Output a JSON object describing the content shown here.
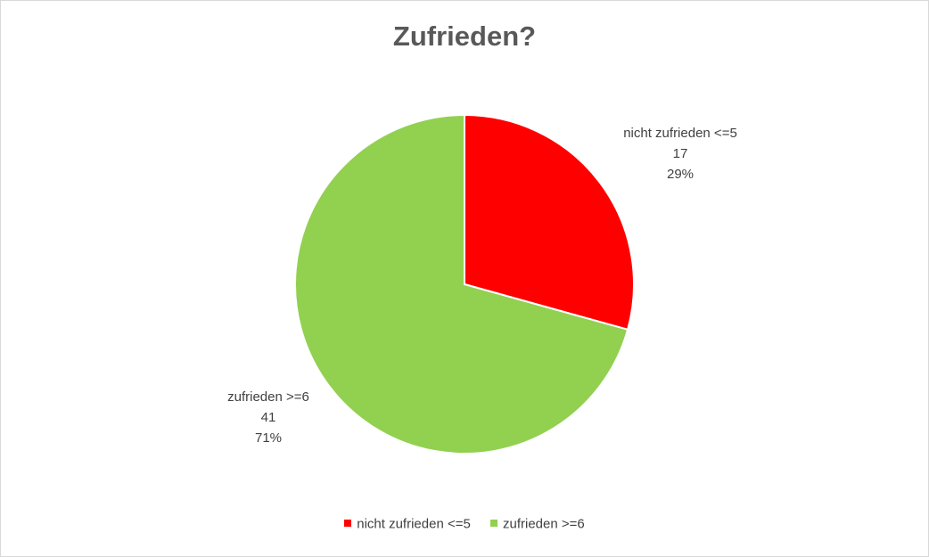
{
  "chart_data": {
    "type": "pie",
    "title": "Zufrieden?",
    "categories": [
      "nicht zufrieden <=5",
      "zufrieden >=6"
    ],
    "values": [
      17,
      41
    ],
    "percent_labels": [
      "29%",
      "71%"
    ],
    "colors": [
      "#ff0000",
      "#92d050"
    ],
    "legend_position": "bottom",
    "start_angle_deg": 0,
    "direction": "clockwise"
  }
}
